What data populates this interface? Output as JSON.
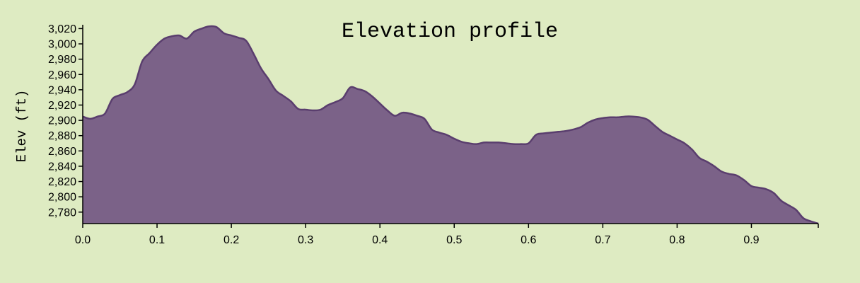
{
  "chart_data": {
    "type": "area",
    "title": "Elevation profile",
    "xlabel": "",
    "ylabel": "Elev (ft)",
    "xlim": [
      0,
      0.99
    ],
    "ylim": [
      2765,
      3025
    ],
    "x_ticks": [
      "0.0",
      "0.1",
      "0.2",
      "0.3",
      "0.4",
      "0.5",
      "0.6",
      "0.7",
      "0.8",
      "0.9"
    ],
    "x_tick_values": [
      0,
      0.1,
      0.2,
      0.3,
      0.4,
      0.5,
      0.6,
      0.7,
      0.8,
      0.9
    ],
    "y_ticks": [
      "2,780",
      "2,800",
      "2,820",
      "2,840",
      "2,860",
      "2,880",
      "2,900",
      "2,920",
      "2,940",
      "2,960",
      "2,980",
      "3,000",
      "3,020"
    ],
    "y_tick_values": [
      2780,
      2800,
      2820,
      2840,
      2860,
      2880,
      2900,
      2920,
      2940,
      2960,
      2980,
      3000,
      3020
    ],
    "grid": false,
    "fill_color": "#7b6288",
    "stroke_color": "#5a3e6e",
    "x": [
      0,
      0.01,
      0.02,
      0.03,
      0.04,
      0.05,
      0.06,
      0.07,
      0.08,
      0.09,
      0.1,
      0.11,
      0.12,
      0.13,
      0.14,
      0.15,
      0.16,
      0.17,
      0.18,
      0.19,
      0.2,
      0.21,
      0.22,
      0.23,
      0.24,
      0.25,
      0.26,
      0.27,
      0.28,
      0.29,
      0.3,
      0.31,
      0.32,
      0.33,
      0.34,
      0.35,
      0.36,
      0.37,
      0.38,
      0.39,
      0.4,
      0.41,
      0.42,
      0.43,
      0.44,
      0.45,
      0.46,
      0.47,
      0.48,
      0.49,
      0.5,
      0.51,
      0.52,
      0.53,
      0.54,
      0.55,
      0.56,
      0.57,
      0.58,
      0.59,
      0.6,
      0.61,
      0.62,
      0.63,
      0.64,
      0.65,
      0.66,
      0.67,
      0.68,
      0.69,
      0.7,
      0.71,
      0.72,
      0.73,
      0.74,
      0.75,
      0.76,
      0.77,
      0.78,
      0.79,
      0.8,
      0.81,
      0.82,
      0.83,
      0.84,
      0.85,
      0.86,
      0.87,
      0.88,
      0.89,
      0.9,
      0.91,
      0.92,
      0.93,
      0.94,
      0.95,
      0.96,
      0.97,
      0.98,
      0.99
    ],
    "y": [
      2905,
      2902,
      2905,
      2909,
      2928,
      2933,
      2937,
      2947,
      2977,
      2988,
      2999,
      3007,
      3010,
      3011,
      3007,
      3016,
      3020,
      3023,
      3022,
      3014,
      3011,
      3008,
      3004,
      2987,
      2968,
      2954,
      2939,
      2932,
      2925,
      2915,
      2914,
      2913,
      2914,
      2920,
      2924,
      2929,
      2943,
      2941,
      2938,
      2931,
      2922,
      2913,
      2906,
      2910,
      2909,
      2906,
      2902,
      2888,
      2884,
      2881,
      2876,
      2872,
      2870,
      2869,
      2871,
      2871,
      2871,
      2870,
      2869,
      2869,
      2870,
      2881,
      2883,
      2884,
      2885,
      2886,
      2888,
      2891,
      2897,
      2901,
      2903,
      2904,
      2904,
      2905,
      2905,
      2904,
      2901,
      2893,
      2885,
      2880,
      2875,
      2870,
      2862,
      2851,
      2846,
      2840,
      2833,
      2830,
      2828,
      2822,
      2814,
      2812,
      2810,
      2805,
      2795,
      2789,
      2783,
      2772,
      2768,
      2765
    ]
  }
}
